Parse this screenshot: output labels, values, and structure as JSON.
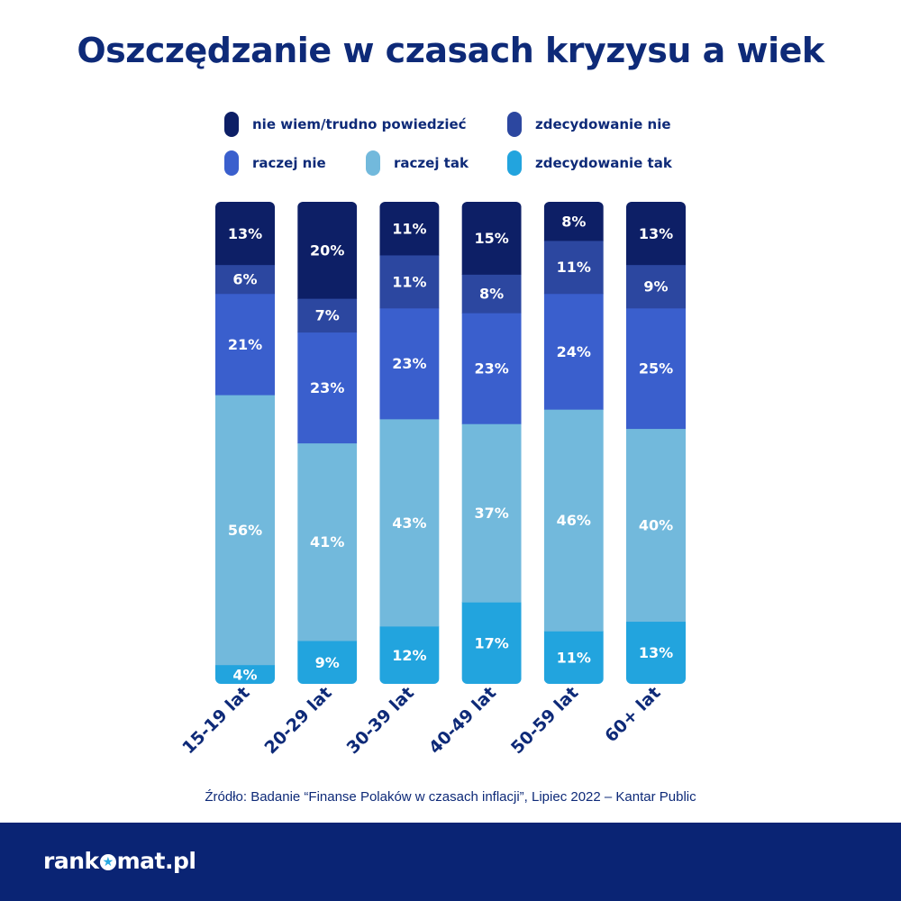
{
  "page": {
    "source": "Źródło: Badanie “Finanse Polaków w czasach inflacji”, Lipiec 2022 – Kantar Public",
    "logo_left": "rank",
    "logo_right": "mat.pl"
  },
  "chart_data": {
    "type": "bar",
    "stacked": true,
    "orientation": "vertical",
    "title": "Oszczędzanie w czasach kryzysu a wiek",
    "categories": [
      "15-19 lat",
      "20-29 lat",
      "30-39 lat",
      "40-49 lat",
      "50-59 lat",
      "60+ lat"
    ],
    "value_suffix": "%",
    "legend_position": "top",
    "grid": false,
    "ylim": [
      0,
      100
    ],
    "series": [
      {
        "name": "zdecydowanie tak",
        "color": "#22a4de",
        "values": [
          4,
          9,
          12,
          17,
          11,
          13
        ]
      },
      {
        "name": "raczej tak",
        "color": "#72b9dc",
        "values": [
          56,
          41,
          43,
          37,
          46,
          40
        ]
      },
      {
        "name": "raczej nie",
        "color": "#3a5fcd",
        "values": [
          21,
          23,
          23,
          23,
          24,
          25
        ]
      },
      {
        "name": "zdecydowanie nie",
        "color": "#2c47a0",
        "values": [
          6,
          7,
          11,
          8,
          11,
          9
        ]
      },
      {
        "name": "nie wiem/trudno powiedzieć",
        "color": "#0d1f66",
        "values": [
          13,
          20,
          11,
          15,
          8,
          13
        ]
      }
    ],
    "legend_order": [
      "nie wiem/trudno powiedzieć",
      "zdecydowanie nie",
      "raczej nie",
      "raczej tak",
      "zdecydowanie tak"
    ]
  }
}
